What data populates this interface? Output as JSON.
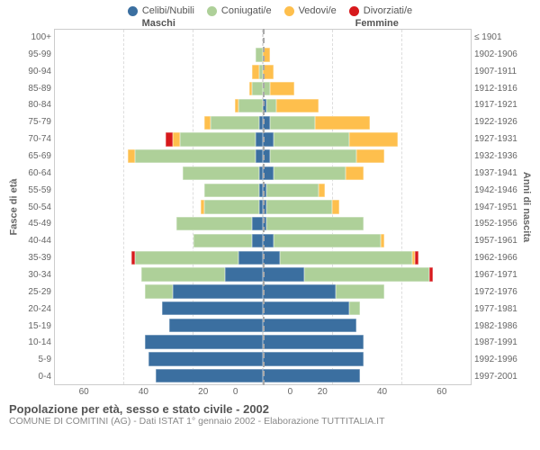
{
  "legend": [
    {
      "label": "Celibi/Nubili",
      "color": "#3b6fa0"
    },
    {
      "label": "Coniugati/e",
      "color": "#aed099"
    },
    {
      "label": "Vedovi/e",
      "color": "#febf4d"
    },
    {
      "label": "Divorziati/e",
      "color": "#d7191c"
    }
  ],
  "headers": {
    "left": "Maschi",
    "right": "Femmine"
  },
  "ylabels": {
    "left": "Fasce di età",
    "right": "Anni di nascita"
  },
  "xmax": 60,
  "xticks": [
    0,
    20,
    40,
    60
  ],
  "age_bands": [
    "100+",
    "95-99",
    "90-94",
    "85-89",
    "80-84",
    "75-79",
    "70-74",
    "65-69",
    "60-64",
    "55-59",
    "50-54",
    "45-49",
    "40-44",
    "35-39",
    "30-34",
    "25-29",
    "20-24",
    "15-19",
    "10-14",
    "5-9",
    "0-4"
  ],
  "birth_bands": [
    "≤ 1901",
    "1902-1906",
    "1907-1911",
    "1912-1916",
    "1917-1921",
    "1922-1926",
    "1927-1931",
    "1932-1936",
    "1937-1941",
    "1942-1946",
    "1947-1951",
    "1952-1956",
    "1957-1961",
    "1962-1966",
    "1967-1971",
    "1972-1976",
    "1977-1981",
    "1982-1986",
    "1987-1991",
    "1992-1996",
    "1997-2001"
  ],
  "males": [
    {
      "c": 0,
      "m": 0,
      "w": 0,
      "d": 0
    },
    {
      "c": 0,
      "m": 2,
      "w": 0,
      "d": 0
    },
    {
      "c": 0,
      "m": 1,
      "w": 2,
      "d": 0
    },
    {
      "c": 0,
      "m": 3,
      "w": 1,
      "d": 0
    },
    {
      "c": 0,
      "m": 7,
      "w": 1,
      "d": 0
    },
    {
      "c": 1,
      "m": 14,
      "w": 2,
      "d": 0
    },
    {
      "c": 2,
      "m": 22,
      "w": 2,
      "d": 2
    },
    {
      "c": 2,
      "m": 35,
      "w": 2,
      "d": 0
    },
    {
      "c": 1,
      "m": 22,
      "w": 0,
      "d": 0
    },
    {
      "c": 1,
      "m": 16,
      "w": 0,
      "d": 0
    },
    {
      "c": 1,
      "m": 16,
      "w": 1,
      "d": 0
    },
    {
      "c": 3,
      "m": 22,
      "w": 0,
      "d": 0
    },
    {
      "c": 3,
      "m": 17,
      "w": 0,
      "d": 0
    },
    {
      "c": 7,
      "m": 30,
      "w": 0,
      "d": 1
    },
    {
      "c": 11,
      "m": 24,
      "w": 0,
      "d": 0
    },
    {
      "c": 26,
      "m": 8,
      "w": 0,
      "d": 0
    },
    {
      "c": 29,
      "m": 0,
      "w": 0,
      "d": 0
    },
    {
      "c": 27,
      "m": 0,
      "w": 0,
      "d": 0
    },
    {
      "c": 34,
      "m": 0,
      "w": 0,
      "d": 0
    },
    {
      "c": 33,
      "m": 0,
      "w": 0,
      "d": 0
    },
    {
      "c": 31,
      "m": 0,
      "w": 0,
      "d": 0
    }
  ],
  "females": [
    {
      "c": 0,
      "m": 0,
      "w": 0,
      "d": 0
    },
    {
      "c": 0,
      "m": 0,
      "w": 2,
      "d": 0
    },
    {
      "c": 0,
      "m": 0,
      "w": 3,
      "d": 0
    },
    {
      "c": 0,
      "m": 2,
      "w": 7,
      "d": 0
    },
    {
      "c": 1,
      "m": 3,
      "w": 12,
      "d": 0
    },
    {
      "c": 2,
      "m": 13,
      "w": 16,
      "d": 0
    },
    {
      "c": 3,
      "m": 22,
      "w": 14,
      "d": 0
    },
    {
      "c": 2,
      "m": 25,
      "w": 8,
      "d": 0
    },
    {
      "c": 3,
      "m": 21,
      "w": 5,
      "d": 0
    },
    {
      "c": 1,
      "m": 15,
      "w": 2,
      "d": 0
    },
    {
      "c": 1,
      "m": 19,
      "w": 2,
      "d": 0
    },
    {
      "c": 1,
      "m": 28,
      "w": 0,
      "d": 0
    },
    {
      "c": 3,
      "m": 31,
      "w": 1,
      "d": 0
    },
    {
      "c": 5,
      "m": 38,
      "w": 1,
      "d": 1
    },
    {
      "c": 12,
      "m": 36,
      "w": 0,
      "d": 1
    },
    {
      "c": 21,
      "m": 14,
      "w": 0,
      "d": 0
    },
    {
      "c": 25,
      "m": 3,
      "w": 0,
      "d": 0
    },
    {
      "c": 27,
      "m": 0,
      "w": 0,
      "d": 0
    },
    {
      "c": 29,
      "m": 0,
      "w": 0,
      "d": 0
    },
    {
      "c": 29,
      "m": 0,
      "w": 0,
      "d": 0
    },
    {
      "c": 28,
      "m": 0,
      "w": 0,
      "d": 0
    }
  ],
  "colors": {
    "celibi": "#3b6fa0",
    "coniugati": "#aed099",
    "vedovi": "#febf4d",
    "divorziati": "#d7191c",
    "bar_border": "#ffffff",
    "grid": "#dddddd",
    "axis": "#cccccc",
    "text": "#666666",
    "background": "#ffffff"
  },
  "caption": {
    "title": "Popolazione per età, sesso e stato civile - 2002",
    "sub": "COMUNE DI COMITINI (AG) - Dati ISTAT 1° gennaio 2002 - Elaborazione TUTTITALIA.IT"
  },
  "style": {
    "bar_height_pct": 82,
    "font_family": "Arial, Helvetica, sans-serif",
    "tick_fontsize": 10,
    "legend_fontsize": 11,
    "title_fontsize": 13
  }
}
